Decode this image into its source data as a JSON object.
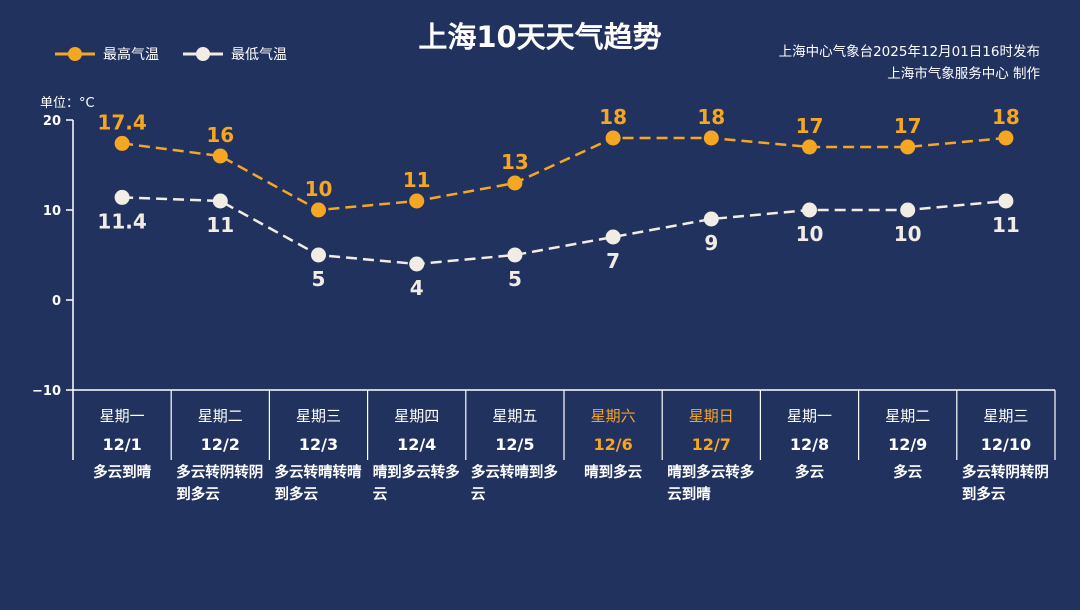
{
  "title": "上海10天天气趋势",
  "source_lines": [
    "上海中心气象台2025年12月01日16时发布",
    "上海市气象服务中心 制作"
  ],
  "unit": "单位：°C",
  "colors": {
    "background": "#22325f",
    "high": "#f5a623",
    "low": "#f1ece4",
    "weekend": "#f5a623"
  },
  "chart_data": {
    "type": "line",
    "title": "上海10天天气趋势",
    "ylim": [
      -10,
      20
    ],
    "yticks": [
      "20",
      "10",
      "0",
      "−10"
    ],
    "ytick_values": [
      20,
      10,
      0,
      -10
    ],
    "legend_position": "top-left",
    "grid": false,
    "categories": [
      "12/1",
      "12/2",
      "12/3",
      "12/4",
      "12/5",
      "12/6",
      "12/7",
      "12/8",
      "12/9",
      "12/10"
    ],
    "weekdays": [
      "星期一",
      "星期二",
      "星期三",
      "星期四",
      "星期五",
      "星期六",
      "星期日",
      "星期一",
      "星期二",
      "星期三"
    ],
    "weekend_flags": [
      false,
      false,
      false,
      false,
      false,
      true,
      true,
      false,
      false,
      false
    ],
    "weather": [
      "多云到晴",
      "多云转阴转阴到多云",
      "多云转晴转晴到多云",
      "晴到多云转多云",
      "多云转晴到多云",
      "晴到多云",
      "晴到多云转多云到晴",
      "多云",
      "多云",
      "多云转阴转阴到多云"
    ],
    "series": [
      {
        "name": "最高气温",
        "values": [
          17.4,
          16,
          10,
          11,
          13,
          18,
          18,
          17,
          17,
          18
        ],
        "labels": [
          "17.4",
          "16",
          "10",
          "11",
          "13",
          "18",
          "18",
          "17",
          "17",
          "18"
        ]
      },
      {
        "name": "最低气温",
        "values": [
          11.4,
          11,
          5,
          4,
          5,
          7,
          9,
          10,
          10,
          11
        ],
        "labels": [
          "11.4",
          "11",
          "5",
          "4",
          "5",
          "7",
          "9",
          "10",
          "10",
          "11"
        ]
      }
    ]
  }
}
